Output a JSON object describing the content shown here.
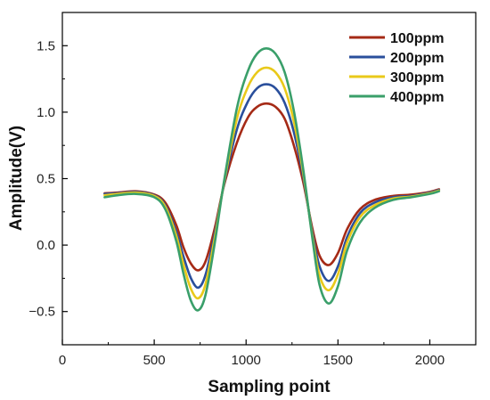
{
  "chart_data": {
    "type": "line",
    "title": "",
    "xlabel": "Sampling point",
    "ylabel": "Amplitude(V)",
    "xlim": [
      0,
      2250
    ],
    "ylim": [
      -0.75,
      1.75
    ],
    "x_ticks": [
      0,
      500,
      1000,
      1500,
      2000
    ],
    "y_ticks": [
      -0.5,
      0.0,
      0.5,
      1.0,
      1.5
    ],
    "x_tick_labels": [
      "0",
      "500",
      "1000",
      "1500",
      "2000"
    ],
    "y_tick_labels": [
      "−0.5",
      "0.0",
      "0.5",
      "1.0",
      "1.5"
    ],
    "legend_position": "top-right",
    "grid": false,
    "x": [
      230,
      300,
      400,
      500,
      560,
      620,
      660,
      700,
      740,
      780,
      830,
      880,
      950,
      1010,
      1060,
      1110,
      1160,
      1210,
      1260,
      1310,
      1360,
      1400,
      1450,
      1500,
      1550,
      1620,
      1700,
      1800,
      1900,
      2000,
      2050
    ],
    "series": [
      {
        "name": "100ppm",
        "color": "#a52a16",
        "values": [
          0.39,
          0.395,
          0.405,
          0.38,
          0.32,
          0.15,
          -0.02,
          -0.14,
          -0.19,
          -0.12,
          0.13,
          0.45,
          0.77,
          0.96,
          1.04,
          1.065,
          1.04,
          0.95,
          0.75,
          0.48,
          0.13,
          -0.08,
          -0.15,
          -0.06,
          0.12,
          0.27,
          0.34,
          0.37,
          0.38,
          0.4,
          0.42
        ]
      },
      {
        "name": "200ppm",
        "color": "#2a4f9c",
        "values": [
          0.385,
          0.39,
          0.4,
          0.375,
          0.3,
          0.1,
          -0.09,
          -0.25,
          -0.32,
          -0.22,
          0.09,
          0.46,
          0.87,
          1.08,
          1.18,
          1.21,
          1.18,
          1.07,
          0.85,
          0.52,
          0.1,
          -0.16,
          -0.27,
          -0.16,
          0.06,
          0.24,
          0.32,
          0.36,
          0.37,
          0.395,
          0.415
        ]
      },
      {
        "name": "300ppm",
        "color": "#e9c91a",
        "values": [
          0.375,
          0.385,
          0.395,
          0.37,
          0.29,
          0.07,
          -0.15,
          -0.33,
          -0.4,
          -0.29,
          0.06,
          0.47,
          0.95,
          1.19,
          1.3,
          1.335,
          1.3,
          1.18,
          0.93,
          0.55,
          0.08,
          -0.23,
          -0.34,
          -0.22,
          0.02,
          0.21,
          0.3,
          0.35,
          0.365,
          0.39,
          0.41
        ]
      },
      {
        "name": "400ppm",
        "color": "#3a9f6a",
        "values": [
          0.36,
          0.375,
          0.385,
          0.36,
          0.27,
          0.03,
          -0.22,
          -0.42,
          -0.49,
          -0.37,
          0.02,
          0.48,
          1.03,
          1.31,
          1.44,
          1.48,
          1.44,
          1.3,
          1.01,
          0.58,
          0.06,
          -0.3,
          -0.44,
          -0.31,
          -0.04,
          0.17,
          0.28,
          0.34,
          0.36,
          0.385,
          0.405
        ]
      }
    ]
  }
}
